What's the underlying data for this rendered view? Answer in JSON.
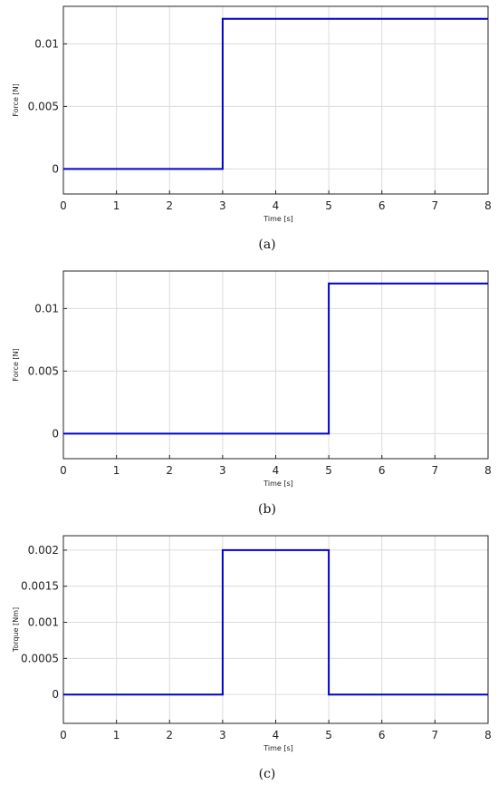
{
  "chart_data": [
    {
      "type": "line",
      "title": "",
      "caption": "(a)",
      "xlabel": "Time [s]",
      "ylabel": "Force [N]",
      "xlim": [
        0,
        8
      ],
      "ylim": [
        -0.002,
        0.013
      ],
      "xticks": [
        0,
        1,
        2,
        3,
        4,
        5,
        6,
        7,
        8
      ],
      "yticks": [
        0,
        0.005,
        0.01
      ],
      "ytick_labels": [
        "0",
        "0.005",
        "0.01"
      ],
      "grid": true,
      "series": [
        {
          "color": "#0000cc",
          "x": [
            0,
            3,
            3,
            8
          ],
          "y": [
            0,
            0,
            0.012,
            0.012
          ]
        }
      ]
    },
    {
      "type": "line",
      "title": "",
      "caption": "(b)",
      "xlabel": "Time [s]",
      "ylabel": "Force [N]",
      "xlim": [
        0,
        8
      ],
      "ylim": [
        -0.002,
        0.013
      ],
      "xticks": [
        0,
        1,
        2,
        3,
        4,
        5,
        6,
        7,
        8
      ],
      "yticks": [
        0,
        0.005,
        0.01
      ],
      "ytick_labels": [
        "0",
        "0.005",
        "0.01"
      ],
      "grid": true,
      "series": [
        {
          "color": "#0000cc",
          "x": [
            0,
            5,
            5,
            8
          ],
          "y": [
            0,
            0,
            0.012,
            0.012
          ]
        }
      ]
    },
    {
      "type": "line",
      "title": "",
      "caption": "(c)",
      "xlabel": "Time [s]",
      "ylabel": "Torque [Nm]",
      "xlim": [
        0,
        8
      ],
      "ylim": [
        -0.0004,
        0.0022
      ],
      "xticks": [
        0,
        1,
        2,
        3,
        4,
        5,
        6,
        7,
        8
      ],
      "yticks": [
        0,
        0.0005,
        0.001,
        0.0015,
        0.002
      ],
      "ytick_labels": [
        "0",
        "0.0005",
        "0.001",
        "0.0015",
        "0.002"
      ],
      "grid": true,
      "series": [
        {
          "color": "#0000cc",
          "x": [
            0,
            3,
            3,
            5,
            5,
            8
          ],
          "y": [
            0,
            0,
            0.002,
            0.002,
            0,
            0
          ]
        }
      ]
    }
  ]
}
